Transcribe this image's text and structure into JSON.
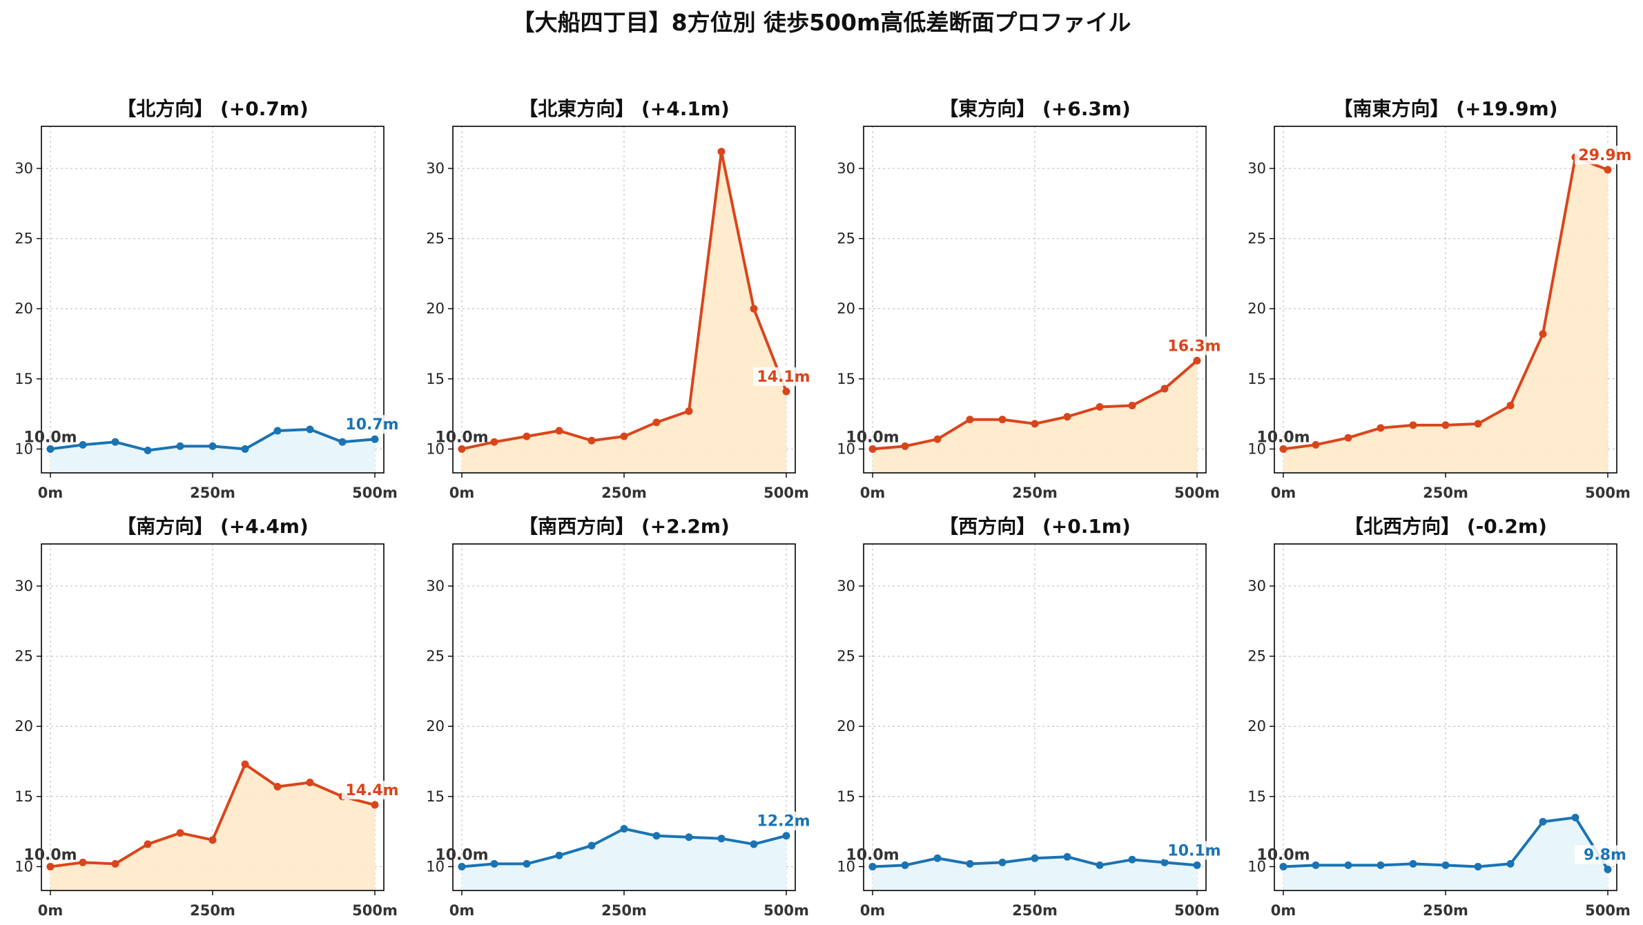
{
  "title": "【大船四丁目】8方位別 徒歩500m高低差断面プロファイル",
  "colors": {
    "up_line": "#d9451b",
    "up_fill": "#ffe9c9",
    "down_line": "#1a73b3",
    "down_fill": "#e6f5fb"
  },
  "chart_data": [
    {
      "type": "area",
      "title": "【北方向】 (+0.7m)",
      "trend": "flat",
      "x": [
        0,
        50,
        100,
        150,
        200,
        250,
        300,
        350,
        400,
        450,
        500
      ],
      "y": [
        10.0,
        10.3,
        10.5,
        9.9,
        10.2,
        10.2,
        10.0,
        11.3,
        11.4,
        10.5,
        10.7
      ],
      "start_label": "10.0m",
      "end_label": "10.7m",
      "ylim": [
        8.3,
        33
      ],
      "yticks": [
        10,
        15,
        20,
        25,
        30
      ],
      "xticks": [
        "0m",
        "250m",
        "500m"
      ],
      "grid": true
    },
    {
      "type": "area",
      "title": "【北東方向】 (+4.1m)",
      "trend": "up",
      "x": [
        0,
        50,
        100,
        150,
        200,
        250,
        300,
        350,
        400,
        450,
        500
      ],
      "y": [
        10.0,
        10.5,
        10.9,
        11.3,
        10.6,
        10.9,
        11.9,
        12.7,
        31.2,
        20.0,
        14.1
      ],
      "start_label": "10.0m",
      "end_label": "14.1m",
      "ylim": [
        8.3,
        33
      ],
      "yticks": [
        10,
        15,
        20,
        25,
        30
      ],
      "xticks": [
        "0m",
        "250m",
        "500m"
      ],
      "grid": true
    },
    {
      "type": "area",
      "title": "【東方向】 (+6.3m)",
      "trend": "up",
      "x": [
        0,
        50,
        100,
        150,
        200,
        250,
        300,
        350,
        400,
        450,
        500
      ],
      "y": [
        10.0,
        10.2,
        10.7,
        12.1,
        12.1,
        11.8,
        12.3,
        13.0,
        13.1,
        14.3,
        16.3
      ],
      "start_label": "10.0m",
      "end_label": "16.3m",
      "ylim": [
        8.3,
        33
      ],
      "yticks": [
        10,
        15,
        20,
        25,
        30
      ],
      "xticks": [
        "0m",
        "250m",
        "500m"
      ],
      "grid": true
    },
    {
      "type": "area",
      "title": "【南東方向】 (+19.9m)",
      "trend": "up",
      "x": [
        0,
        50,
        100,
        150,
        200,
        250,
        300,
        350,
        400,
        450,
        500
      ],
      "y": [
        10.0,
        10.3,
        10.8,
        11.5,
        11.7,
        11.7,
        11.8,
        13.1,
        18.2,
        30.8,
        29.9
      ],
      "start_label": "10.0m",
      "end_label": "29.9m",
      "ylim": [
        8.3,
        33
      ],
      "yticks": [
        10,
        15,
        20,
        25,
        30
      ],
      "xticks": [
        "0m",
        "250m",
        "500m"
      ],
      "grid": true
    },
    {
      "type": "area",
      "title": "【南方向】 (+4.4m)",
      "trend": "up",
      "x": [
        0,
        50,
        100,
        150,
        200,
        250,
        300,
        350,
        400,
        450,
        500
      ],
      "y": [
        10.0,
        10.3,
        10.2,
        11.6,
        12.4,
        11.9,
        17.3,
        15.7,
        16.0,
        15.0,
        14.4
      ],
      "start_label": "10.0m",
      "end_label": "14.4m",
      "ylim": [
        8.3,
        33
      ],
      "yticks": [
        10,
        15,
        20,
        25,
        30
      ],
      "xticks": [
        "0m",
        "250m",
        "500m"
      ],
      "grid": true
    },
    {
      "type": "area",
      "title": "【南西方向】 (+2.2m)",
      "trend": "flat",
      "x": [
        0,
        50,
        100,
        150,
        200,
        250,
        300,
        350,
        400,
        450,
        500
      ],
      "y": [
        10.0,
        10.2,
        10.2,
        10.8,
        11.5,
        12.7,
        12.2,
        12.1,
        12.0,
        11.6,
        12.2
      ],
      "start_label": "10.0m",
      "end_label": "12.2m",
      "ylim": [
        8.3,
        33
      ],
      "yticks": [
        10,
        15,
        20,
        25,
        30
      ],
      "xticks": [
        "0m",
        "250m",
        "500m"
      ],
      "grid": true
    },
    {
      "type": "area",
      "title": "【西方向】 (+0.1m)",
      "trend": "flat",
      "x": [
        0,
        50,
        100,
        150,
        200,
        250,
        300,
        350,
        400,
        450,
        500
      ],
      "y": [
        10.0,
        10.1,
        10.6,
        10.2,
        10.3,
        10.6,
        10.7,
        10.1,
        10.5,
        10.3,
        10.1
      ],
      "start_label": "10.0m",
      "end_label": "10.1m",
      "ylim": [
        8.3,
        33
      ],
      "yticks": [
        10,
        15,
        20,
        25,
        30
      ],
      "xticks": [
        "0m",
        "250m",
        "500m"
      ],
      "grid": true
    },
    {
      "type": "area",
      "title": "【北西方向】 (-0.2m)",
      "trend": "flat",
      "x": [
        0,
        50,
        100,
        150,
        200,
        250,
        300,
        350,
        400,
        450,
        500
      ],
      "y": [
        10.0,
        10.1,
        10.1,
        10.1,
        10.2,
        10.1,
        10.0,
        10.2,
        13.2,
        13.5,
        9.8
      ],
      "start_label": "10.0m",
      "end_label": "9.8m",
      "ylim": [
        8.3,
        33
      ],
      "yticks": [
        10,
        15,
        20,
        25,
        30
      ],
      "xticks": [
        "0m",
        "250m",
        "500m"
      ],
      "grid": true
    }
  ]
}
